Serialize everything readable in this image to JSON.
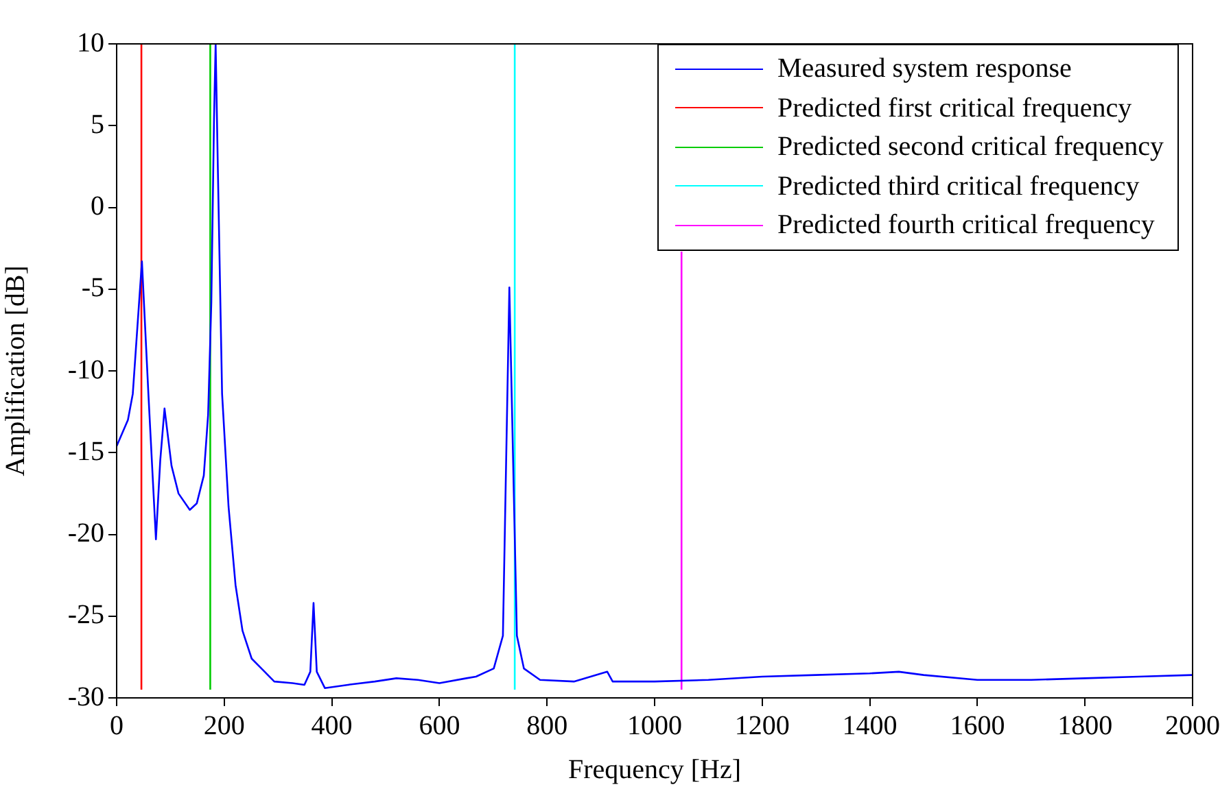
{
  "chart_data": {
    "type": "line",
    "xlabel": "Frequency [Hz]",
    "ylabel": "Amplification [dB]",
    "xlim": [
      0,
      2000
    ],
    "xticks": [
      0,
      200,
      400,
      600,
      800,
      1000,
      1200,
      1400,
      1600,
      1800,
      2000
    ],
    "ylim": [
      -30,
      10
    ],
    "yticks": [
      -30,
      -25,
      -20,
      -15,
      -10,
      -5,
      0,
      5,
      10
    ],
    "legend": "top right",
    "marker": "none",
    "line_style": "solid",
    "series": [
      {
        "name": "Measured system response",
        "color": "#0000ff",
        "x": [
          0,
          21,
          30,
          47,
          59,
          73,
          81,
          89,
          102,
          115,
          136,
          149,
          162,
          170,
          176,
          181,
          184,
          188,
          196,
          208,
          221,
          234,
          251,
          272,
          293,
          327,
          349,
          360,
          366,
          372,
          387,
          430,
          480,
          520,
          560,
          600,
          650,
          668,
          701,
          718,
          730,
          744,
          757,
          787,
          850,
          912,
          922,
          1000,
          1100,
          1200,
          1300,
          1400,
          1454,
          1500,
          1600,
          1700,
          1800,
          1900,
          2000
        ],
        "values": [
          -14.6,
          -13.0,
          -11.4,
          -3.3,
          -11.4,
          -20.3,
          -15.5,
          -12.3,
          -15.8,
          -17.5,
          -18.5,
          -18.1,
          -16.4,
          -12.7,
          -5.8,
          5.4,
          10,
          2.6,
          -11.4,
          -18.3,
          -23.1,
          -25.9,
          -27.6,
          -28.3,
          -29.0,
          -29.1,
          -29.2,
          -28.4,
          -24.2,
          -28.4,
          -29.4,
          -29.2,
          -29.0,
          -28.8,
          -28.9,
          -29.1,
          -28.8,
          -28.7,
          -28.2,
          -26.2,
          -4.9,
          -26.2,
          -28.2,
          -28.9,
          -29.0,
          -28.4,
          -29.0,
          -29.0,
          -28.9,
          -28.7,
          -28.6,
          -28.5,
          -28.4,
          -28.6,
          -28.9,
          -28.9,
          -28.8,
          -28.7,
          -28.6
        ]
      },
      {
        "name": "Predicted first critical frequency",
        "color": "#ff0000",
        "x": [
          46,
          46
        ],
        "values": [
          -29.5,
          10
        ]
      },
      {
        "name": "Predicted second critical frequency",
        "color": "#00cc00",
        "x": [
          174,
          174
        ],
        "values": [
          -29.5,
          10
        ]
      },
      {
        "name": "Predicted third critical frequency",
        "color": "#00ffff",
        "x": [
          740,
          740
        ],
        "values": [
          -29.5,
          10
        ]
      },
      {
        "name": "Predicted fourth critical frequency",
        "color": "#ff00ff",
        "x": [
          1050,
          1050
        ],
        "values": [
          -29.5,
          -2.7
        ]
      }
    ]
  }
}
